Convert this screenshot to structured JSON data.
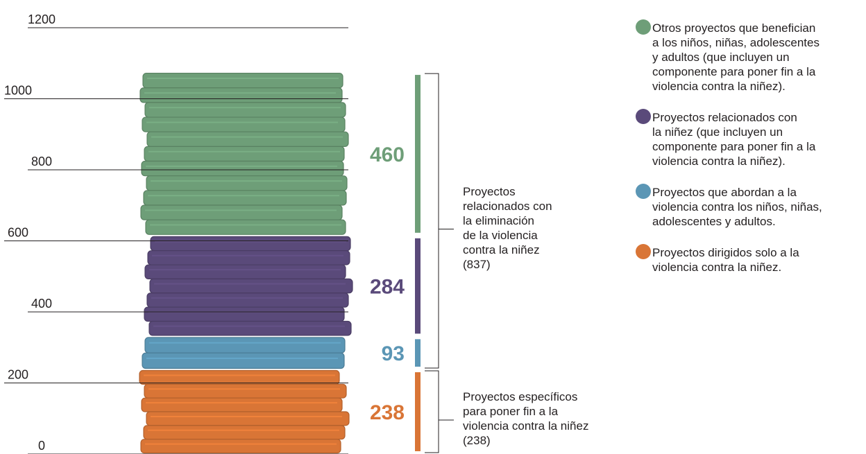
{
  "chart_data": {
    "type": "bar",
    "stacked": true,
    "categories": [
      ""
    ],
    "ylim": [
      0,
      1200
    ],
    "yticks": [
      "0",
      "200",
      "400",
      "600",
      "800",
      "1000",
      "1200"
    ],
    "series": [
      {
        "name": "Proyectos dirigidos solo a la\nviolencia contra la niñez.",
        "values": [
          238
        ],
        "color": "#d97536",
        "label": "238"
      },
      {
        "name": "Proyectos que abordan a la\nviolencia contra los niños, niñas,\nadolescentes y adultos.",
        "values": [
          93
        ],
        "color": "#5b96b5",
        "label": "93"
      },
      {
        "name": "Proyectos relacionados con\nla niñez (que incluyen un\ncomponente para poner fin a la\nviolencia contra la niñez).",
        "values": [
          284
        ],
        "color": "#5a4a7a",
        "label": "284"
      },
      {
        "name": "Otros proyectos que benefician\na los niños, niñas, adolescentes\ny adultos (que incluyen un\ncomponente para poner fin a la\nviolencia contra la niñez).",
        "values": [
          460
        ],
        "color": "#6e9e78",
        "label": "460"
      }
    ],
    "legend_position": "top-right",
    "legend_order": [
      3,
      2,
      1,
      0
    ],
    "brackets": [
      {
        "text": "Proyectos\nrelacionados con\nla eliminación\nde la violencia\ncontra la niñez\n(837)",
        "from": 238,
        "to": 1075
      },
      {
        "text": "Proyectos específicos\npara poner fin a la\nviolencia contra la niñez\n(238)",
        "from": 0,
        "to": 238
      }
    ]
  }
}
